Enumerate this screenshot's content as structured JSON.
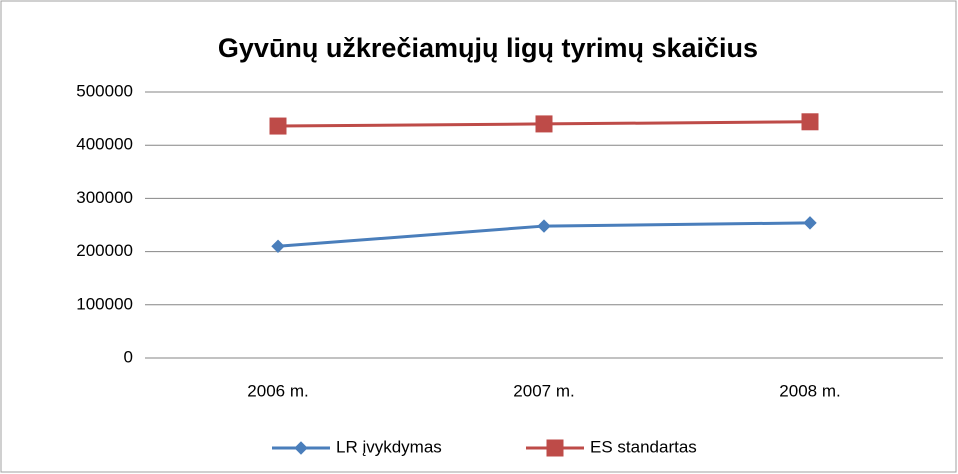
{
  "chart_data": {
    "type": "line",
    "title": "Gyvūnų užkrečiamųjų ligų tyrimų skaičius",
    "categories": [
      "2006 m.",
      "2007 m.",
      "2008 m."
    ],
    "series": [
      {
        "name": "LR įvykdymas",
        "color": "#4a7ebb",
        "marker": "diamond",
        "values": [
          210000,
          248000,
          254000
        ]
      },
      {
        "name": "ES standartas",
        "color": "#be4b48",
        "marker": "square",
        "values": [
          436000,
          440000,
          444000
        ]
      }
    ],
    "ylim": [
      0,
      500000
    ],
    "yticks": [
      0,
      100000,
      200000,
      300000,
      400000,
      500000
    ],
    "grid": true,
    "legend": "bottom"
  }
}
